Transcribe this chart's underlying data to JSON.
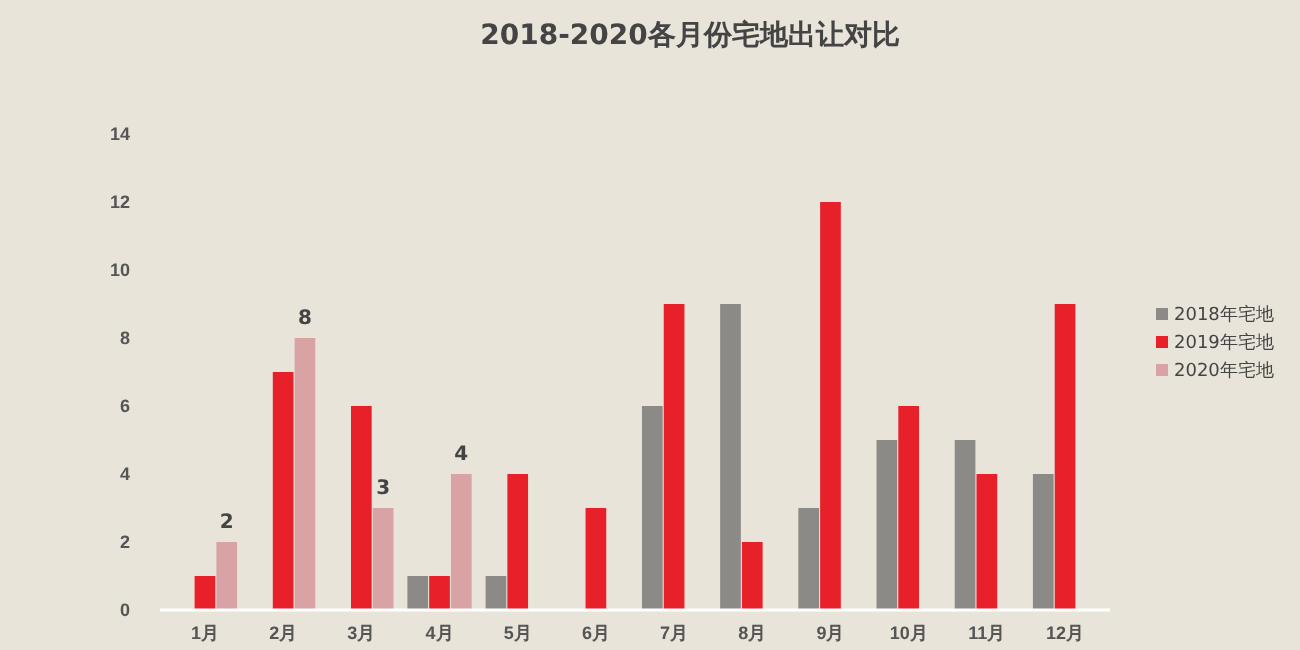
{
  "chart_data": {
    "type": "bar",
    "title": "2018-2020各月份宅地出让对比",
    "categories": [
      "1月",
      "2月",
      "3月",
      "4月",
      "5月",
      "6月",
      "7月",
      "8月",
      "9月",
      "10月",
      "11月",
      "12月"
    ],
    "series": [
      {
        "name": "2018年宅地",
        "color": "#8c8a87",
        "values": [
          null,
          null,
          null,
          1,
          1,
          null,
          6,
          9,
          3,
          5,
          5,
          4
        ]
      },
      {
        "name": "2019年宅地",
        "color": "#e8202a",
        "values": [
          1,
          7,
          6,
          1,
          4,
          3,
          9,
          2,
          12,
          6,
          4,
          9
        ]
      },
      {
        "name": "2020年宅地",
        "color": "#d9a3a6",
        "values": [
          2,
          8,
          3,
          4,
          null,
          null,
          null,
          null,
          null,
          null,
          null,
          null
        ],
        "value_labels": [
          "2",
          "8",
          "3",
          "4",
          null,
          null,
          null,
          null,
          null,
          null,
          null,
          null
        ]
      }
    ],
    "ylim": [
      0,
      14
    ],
    "yticks": [
      0,
      2,
      4,
      6,
      8,
      10,
      12,
      14
    ],
    "grid": false,
    "legend": "right"
  }
}
